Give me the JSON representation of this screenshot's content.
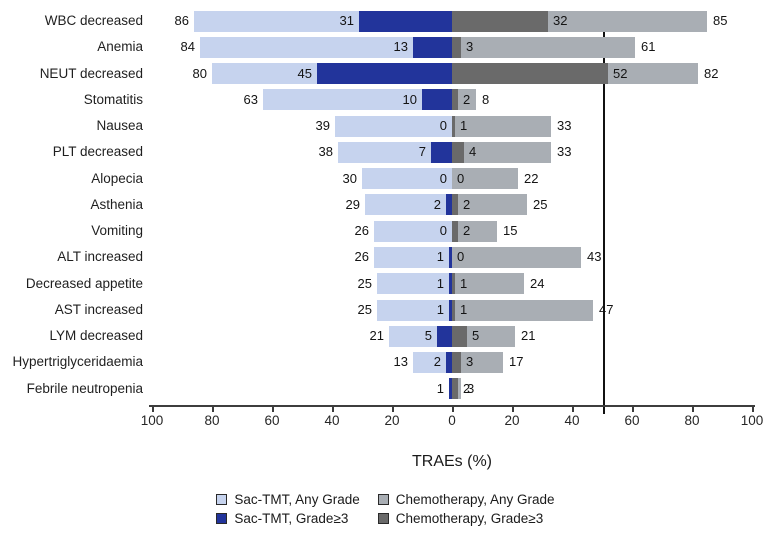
{
  "chart_data": {
    "type": "bar",
    "variant": "diverging-horizontal-tornado",
    "title": "",
    "xlabel": "TRAEs (%)",
    "axis": {
      "tick_labels": [
        "100",
        "80",
        "60",
        "40",
        "20",
        "0",
        "20",
        "40",
        "60",
        "80",
        "100"
      ],
      "units_per_side": 100,
      "grid": false
    },
    "colors": {
      "sac_any": "#c6d3ee",
      "sac_g3": "#22349b",
      "chemo_any": "#a9aeb4",
      "chemo_g3": "#6a6a6a"
    },
    "legend": {
      "position": "bottom-center",
      "items": [
        {
          "key": "sac_any",
          "label": "Sac-TMT, Any Grade",
          "color": "#c6d3ee"
        },
        {
          "key": "sac_g3",
          "label": "Sac-TMT, Grade≥3",
          "color": "#22349b"
        },
        {
          "key": "chemo_any",
          "label": "Chemotherapy, Any Grade",
          "color": "#a9aeb4"
        },
        {
          "key": "chemo_g3",
          "label": "Chemotherapy, Grade≥3",
          "color": "#6a6a6a"
        }
      ]
    },
    "series_note": "sac values extend left of zero axis, chemotherapy values extend right; Grade>=3 bars overlay Any-Grade bars from the axis",
    "rows": [
      {
        "label": "WBC decreased",
        "sac_any": 86,
        "sac_g3": 31,
        "chemo_g3": 32,
        "chemo_any": 85
      },
      {
        "label": "Anemia",
        "sac_any": 84,
        "sac_g3": 13,
        "chemo_g3": 3,
        "chemo_any": 61
      },
      {
        "label": "NEUT decreased",
        "sac_any": 80,
        "sac_g3": 45,
        "chemo_g3": 52,
        "chemo_any": 82
      },
      {
        "label": "Stomatitis",
        "sac_any": 63,
        "sac_g3": 10,
        "chemo_g3": 2,
        "chemo_any": 8
      },
      {
        "label": "Nausea",
        "sac_any": 39,
        "sac_g3": 0,
        "chemo_g3": 1,
        "chemo_any": 33
      },
      {
        "label": "PLT decreased",
        "sac_any": 38,
        "sac_g3": 7,
        "chemo_g3": 4,
        "chemo_any": 33
      },
      {
        "label": "Alopecia",
        "sac_any": 30,
        "sac_g3": 0,
        "chemo_g3": 0,
        "chemo_any": 22
      },
      {
        "label": "Asthenia",
        "sac_any": 29,
        "sac_g3": 2,
        "chemo_g3": 2,
        "chemo_any": 25
      },
      {
        "label": "Vomiting",
        "sac_any": 26,
        "sac_g3": 0,
        "chemo_g3": 2,
        "chemo_any": 15
      },
      {
        "label": "ALT increased",
        "sac_any": 26,
        "sac_g3": 1,
        "chemo_g3": 0,
        "chemo_any": 43
      },
      {
        "label": "Decreased appetite",
        "sac_any": 25,
        "sac_g3": 1,
        "chemo_g3": 1,
        "chemo_any": 24
      },
      {
        "label": "AST increased",
        "sac_any": 25,
        "sac_g3": 1,
        "chemo_g3": 1,
        "chemo_any": 47
      },
      {
        "label": "LYM decreased",
        "sac_any": 21,
        "sac_g3": 5,
        "chemo_g3": 5,
        "chemo_any": 21
      },
      {
        "label": "Hypertriglyceridaemia",
        "sac_any": 13,
        "sac_g3": 2,
        "chemo_g3": 3,
        "chemo_any": 17
      },
      {
        "label": "Febrile neutropenia",
        "sac_any": null,
        "sac_g3": 1,
        "chemo_g3": 2,
        "chemo_any": 3
      }
    ]
  }
}
